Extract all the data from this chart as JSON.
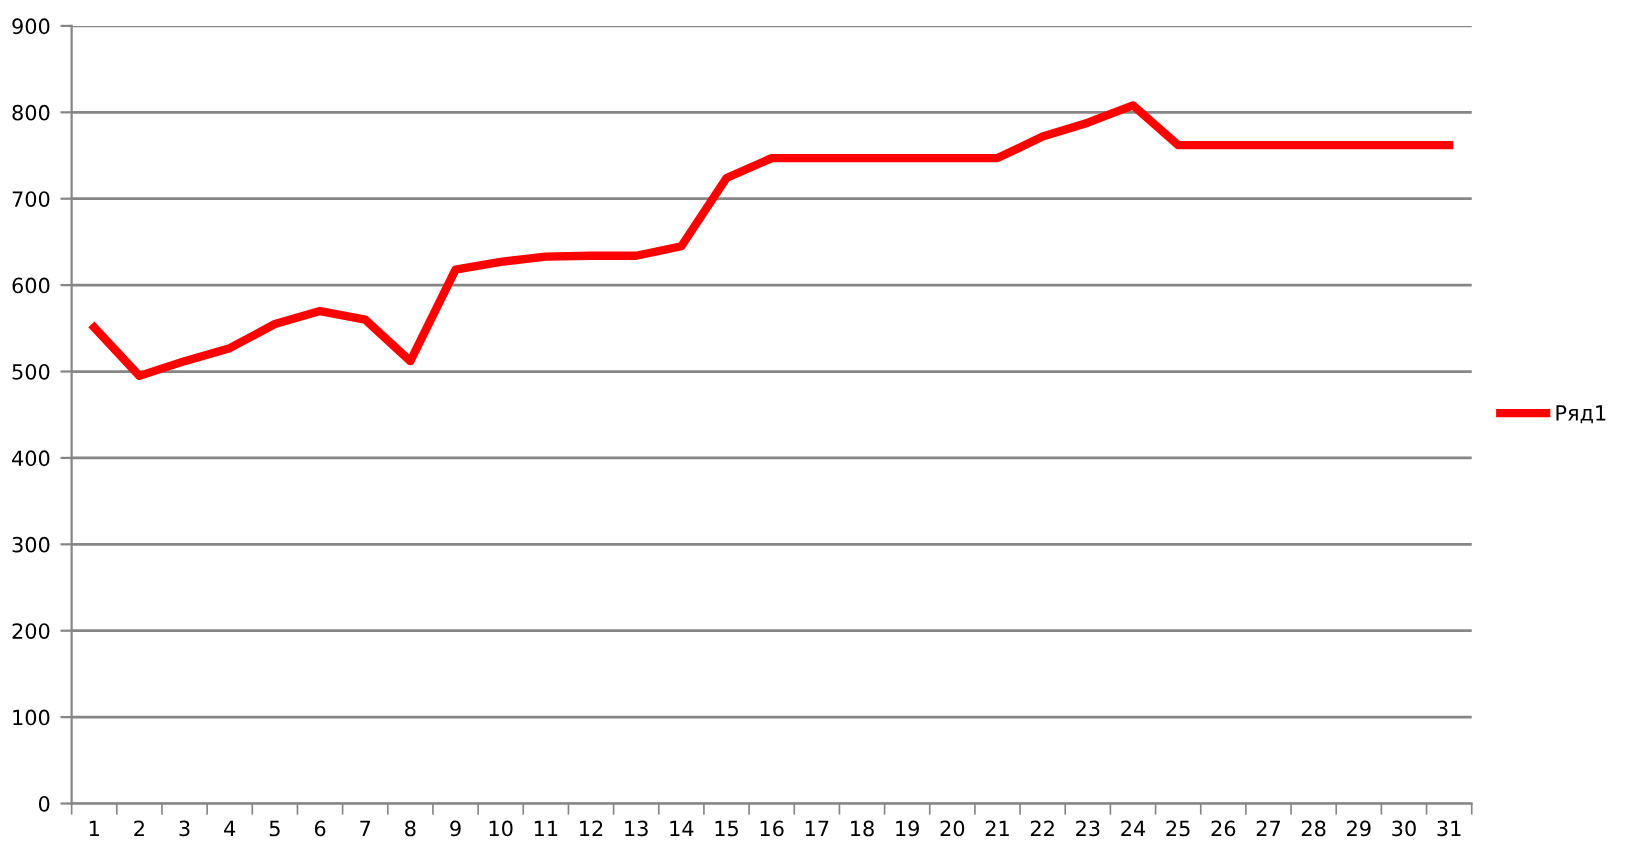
{
  "chart_data": {
    "type": "line",
    "categories": [
      "1",
      "2",
      "3",
      "4",
      "5",
      "6",
      "7",
      "8",
      "9",
      "10",
      "11",
      "12",
      "13",
      "14",
      "15",
      "16",
      "17",
      "18",
      "19",
      "20",
      "21",
      "22",
      "23",
      "24",
      "25",
      "26",
      "27",
      "28",
      "29",
      "30",
      "31"
    ],
    "series": [
      {
        "name": "Ряд1",
        "color": "#ff0000",
        "values": [
          551,
          495,
          512,
          527,
          555,
          570,
          560,
          512,
          618,
          627,
          633,
          634,
          634,
          645,
          724,
          747,
          747,
          747,
          747,
          747,
          747,
          772,
          788,
          808,
          762,
          762,
          762,
          762,
          762,
          762,
          762
        ]
      }
    ],
    "ylim": [
      0,
      900
    ],
    "yticks": [
      0,
      100,
      200,
      300,
      400,
      500,
      600,
      700,
      800,
      900
    ],
    "grid": "y",
    "legend": "right",
    "marker": "none",
    "line_style": "solid"
  }
}
